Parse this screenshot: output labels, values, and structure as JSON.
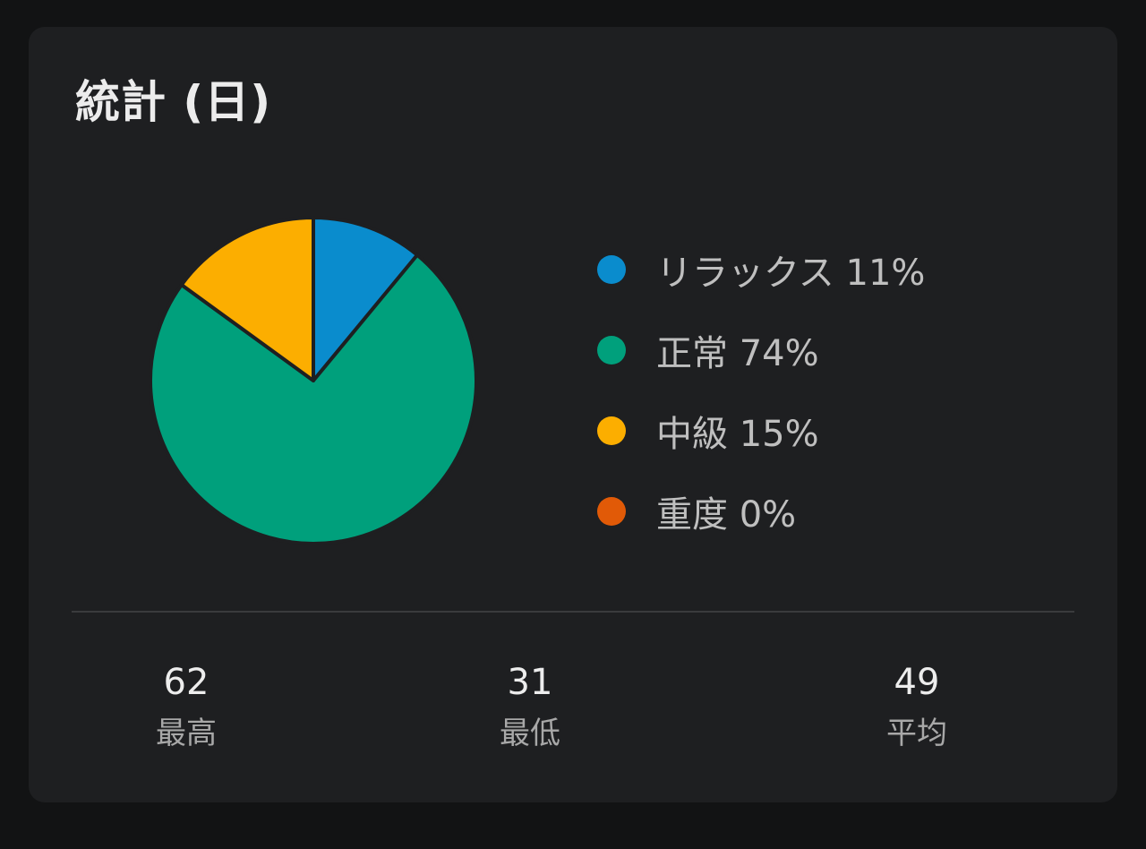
{
  "title": "統計 (日)",
  "chart_data": {
    "type": "pie",
    "categories": [
      "リラックス",
      "正常",
      "中級",
      "重度"
    ],
    "values": [
      11,
      74,
      15,
      0
    ],
    "colors": [
      "#0a8ccd",
      "#00a07c",
      "#fcae00",
      "#e15a07"
    ]
  },
  "legend": [
    {
      "label": "リラックス 11%",
      "color": "#0a8ccd"
    },
    {
      "label": "正常 74%",
      "color": "#00a07c"
    },
    {
      "label": "中級 15%",
      "color": "#fcae00"
    },
    {
      "label": "重度 0%",
      "color": "#e15a07"
    }
  ],
  "stats": [
    {
      "value": "62",
      "label": "最高"
    },
    {
      "value": "31",
      "label": "最低"
    },
    {
      "value": "49",
      "label": "平均"
    }
  ]
}
